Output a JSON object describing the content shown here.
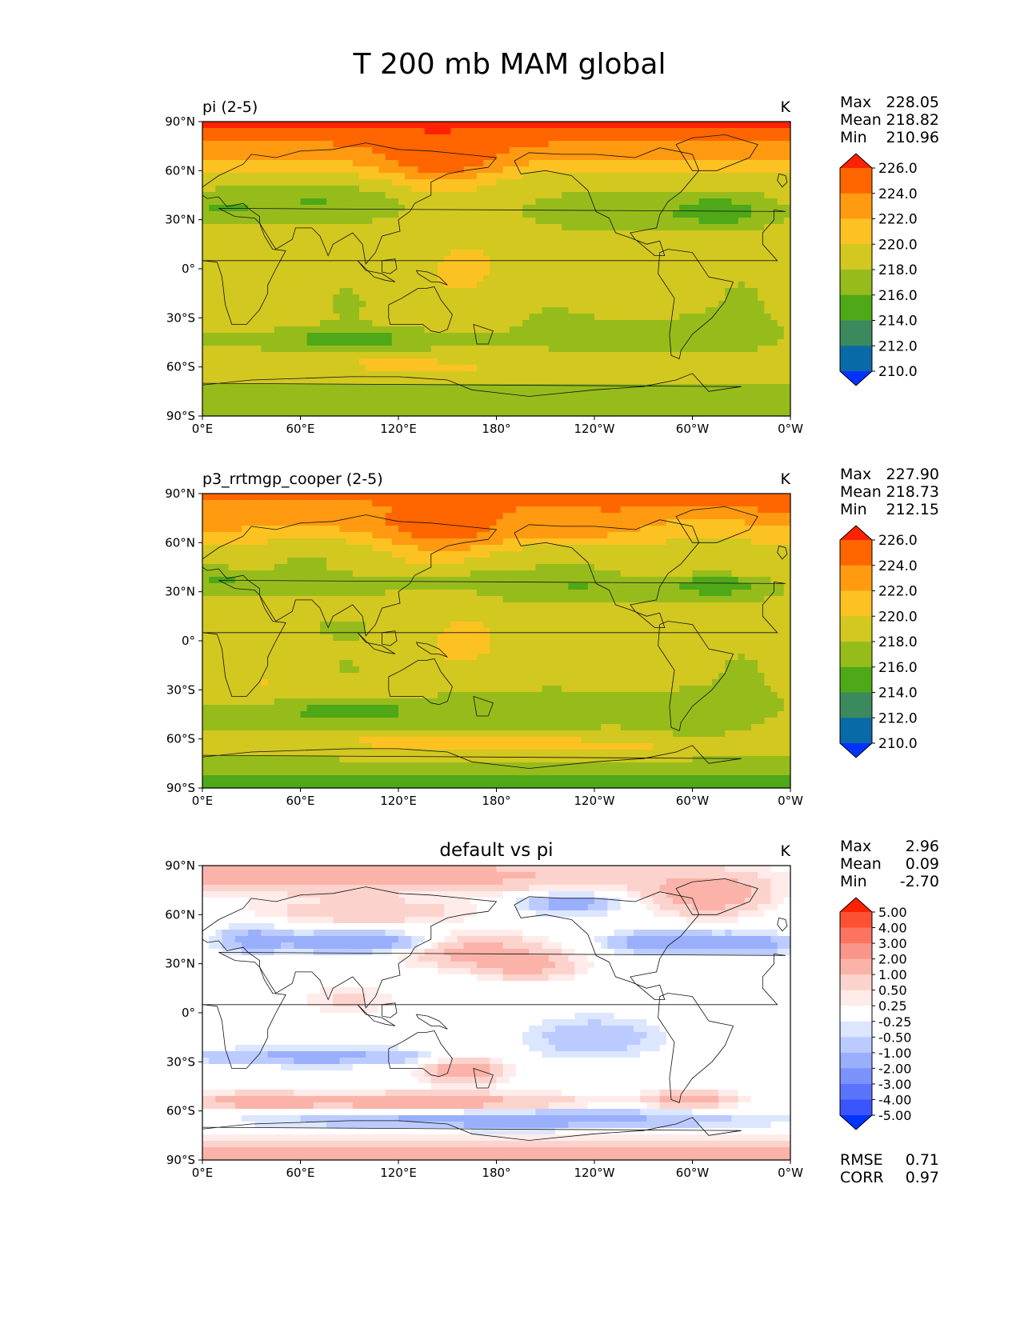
{
  "chart_data": {
    "type": "heatmap",
    "title": "T 200 mb MAM global",
    "lon_ticks": [
      "0°E",
      "60°E",
      "120°E",
      "180°",
      "120°W",
      "60°W",
      "0°W"
    ],
    "lat_ticks": [
      "90°N",
      "60°N",
      "30°N",
      "0°",
      "30°S",
      "60°S",
      "90°S"
    ],
    "panels": [
      {
        "subtitle": "pi (2-5)",
        "units": "K",
        "stats": {
          "max_label": "Max",
          "max": "228.05",
          "mean_label": "Mean",
          "mean": "218.82",
          "min_label": "Min",
          "min": "210.96"
        },
        "colorbar": {
          "levels": [
            "226.0",
            "224.0",
            "222.0",
            "220.0",
            "218.0",
            "216.0",
            "214.0",
            "212.0",
            "210.0"
          ],
          "colors": [
            "#ff2200",
            "#ff6600",
            "#ff9a11",
            "#fcc222",
            "#d2c820",
            "#96bc1c",
            "#4ea818",
            "#3a8a5e",
            "#0a6aa8",
            "#0033ff"
          ]
        },
        "field": "base_pi"
      },
      {
        "subtitle": "p3_rrtmgp_cooper (2-5)",
        "units": "K",
        "stats": {
          "max_label": "Max",
          "max": "227.90",
          "mean_label": "Mean",
          "mean": "218.73",
          "min_label": "Min",
          "min": "212.15"
        },
        "colorbar": {
          "levels": [
            "226.0",
            "224.0",
            "222.0",
            "220.0",
            "218.0",
            "216.0",
            "214.0",
            "212.0",
            "210.0"
          ],
          "colors": [
            "#ff2200",
            "#ff6600",
            "#ff9a11",
            "#fcc222",
            "#d2c820",
            "#96bc1c",
            "#4ea818",
            "#3a8a5e",
            "#0a6aa8",
            "#0033ff"
          ]
        },
        "field": "base_test"
      },
      {
        "subtitle": "default vs pi",
        "units": "K",
        "stats": {
          "max_label": "Max",
          "max": "2.96",
          "mean_label": "Mean",
          "mean": "0.09",
          "min_label": "Min",
          "min": "-2.70"
        },
        "colorbar": {
          "levels": [
            "5.00",
            "4.00",
            "3.00",
            "2.00",
            "1.00",
            "0.50",
            "0.25",
            "-0.25",
            "-0.50",
            "-1.00",
            "-2.00",
            "-3.00",
            "-4.00",
            "-5.00"
          ],
          "colors": [
            "#ff2200",
            "#fe5033",
            "#fb7460",
            "#f9958a",
            "#fbb3a9",
            "#fcd3cc",
            "#ffecea",
            "#ffffff",
            "#dce6ff",
            "#bccbff",
            "#9aaffc",
            "#7c92fb",
            "#5b72fb",
            "#3a55fc",
            "#0033ff"
          ]
        },
        "field": "diff",
        "rmse_label": "RMSE",
        "rmse": "0.71",
        "corr_label": "CORR",
        "corr": "0.97"
      }
    ],
    "grid": false
  }
}
